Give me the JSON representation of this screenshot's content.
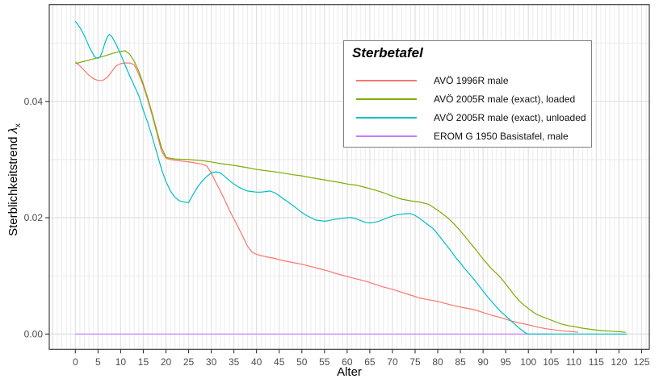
{
  "chart_data": {
    "type": "line",
    "title": "",
    "xlabel": "Alter",
    "ylabel": {
      "prefix": "Sterblichkeitstrend",
      "symbol": "λ",
      "subscript": "x"
    },
    "xlim": [
      -5.76,
      126.7
    ],
    "ylim": [
      -0.00263,
      0.05664
    ],
    "x_ticks": [
      0,
      5,
      10,
      15,
      20,
      25,
      30,
      35,
      40,
      45,
      50,
      55,
      60,
      65,
      70,
      75,
      80,
      85,
      90,
      95,
      100,
      105,
      110,
      115,
      120,
      125
    ],
    "y_ticks": [
      {
        "value": 0.0,
        "label": "0.00"
      },
      {
        "value": 0.02,
        "label": "0.02"
      },
      {
        "value": 0.04,
        "label": "0.04"
      }
    ],
    "x_minor_step": 1,
    "y_minor": [
      0.01,
      0.03,
      0.05
    ],
    "grid": true,
    "legend": {
      "title": "Sterbetafel",
      "position": "inside-top-right",
      "entries": [
        {
          "id": "avo-1996r-male",
          "label": "AVÖ 1996R male",
          "color": "#F8766D"
        },
        {
          "id": "avo-2005r-loaded",
          "label": "AVÖ 2005R male (exact), loaded",
          "color": "#7CAE00"
        },
        {
          "id": "avo-2005r-unloaded",
          "label": "AVÖ 2005R male (exact), unloaded",
          "color": "#00BFC4"
        },
        {
          "id": "erom-g-1950",
          "label": "EROM G 1950 Basistafel, male",
          "color": "#C77CFF"
        }
      ]
    },
    "draw_order": [
      "erom-g-1950",
      "avo-1996r-male",
      "avo-2005r-loaded",
      "avo-2005r-unloaded"
    ],
    "series": [
      {
        "id": "avo-1996r-male",
        "name": "AVÖ 1996R male",
        "color": "#F8766D",
        "points": [
          [
            0,
            0.0468
          ],
          [
            1,
            0.0461
          ],
          [
            2,
            0.0453
          ],
          [
            3,
            0.0445
          ],
          [
            4,
            0.0439
          ],
          [
            5,
            0.0436
          ],
          [
            6,
            0.0436
          ],
          [
            7,
            0.0441
          ],
          [
            8,
            0.0451
          ],
          [
            9,
            0.0461
          ],
          [
            10,
            0.0465
          ],
          [
            11,
            0.0466
          ],
          [
            12,
            0.0466
          ],
          [
            13,
            0.0463
          ],
          [
            14,
            0.0447
          ],
          [
            15,
            0.0427
          ],
          [
            16,
            0.0402
          ],
          [
            17,
            0.0375
          ],
          [
            18,
            0.0345
          ],
          [
            19,
            0.0315
          ],
          [
            20,
            0.0302
          ],
          [
            21,
            0.03
          ],
          [
            22,
            0.0299
          ],
          [
            24,
            0.0297
          ],
          [
            26,
            0.0295
          ],
          [
            28,
            0.0292
          ],
          [
            29,
            0.0289
          ],
          [
            30,
            0.0277
          ],
          [
            31,
            0.0261
          ],
          [
            32,
            0.0246
          ],
          [
            33,
            0.023
          ],
          [
            34,
            0.0213
          ],
          [
            35,
            0.0198
          ],
          [
            36,
            0.0183
          ],
          [
            37,
            0.0167
          ],
          [
            38,
            0.0151
          ],
          [
            39,
            0.0141
          ],
          [
            40,
            0.0137
          ],
          [
            41,
            0.0135
          ],
          [
            42,
            0.0133
          ],
          [
            44,
            0.013
          ],
          [
            46,
            0.0126
          ],
          [
            48,
            0.0123
          ],
          [
            50,
            0.012
          ],
          [
            52,
            0.0116
          ],
          [
            54,
            0.0112
          ],
          [
            56,
            0.0108
          ],
          [
            58,
            0.0103
          ],
          [
            60,
            0.0099
          ],
          [
            62,
            0.0095
          ],
          [
            64,
            0.0091
          ],
          [
            66,
            0.0086
          ],
          [
            68,
            0.0081
          ],
          [
            70,
            0.0077
          ],
          [
            72,
            0.0072
          ],
          [
            74,
            0.0067
          ],
          [
            76,
            0.0062
          ],
          [
            78,
            0.0059
          ],
          [
            80,
            0.0056
          ],
          [
            82,
            0.0052
          ],
          [
            84,
            0.0048
          ],
          [
            86,
            0.0045
          ],
          [
            88,
            0.0042
          ],
          [
            90,
            0.0037
          ],
          [
            92,
            0.0032
          ],
          [
            94,
            0.0028
          ],
          [
            96,
            0.0023
          ],
          [
            98,
            0.0019
          ],
          [
            100,
            0.0016
          ],
          [
            102,
            0.0012
          ],
          [
            104,
            0.0009
          ],
          [
            106,
            0.0007
          ],
          [
            108,
            0.0005
          ],
          [
            110,
            0.0004
          ],
          [
            111,
            0.0003
          ]
        ]
      },
      {
        "id": "avo-2005r-loaded",
        "name": "AVÖ 2005R male (exact), loaded",
        "color": "#7CAE00",
        "points": [
          [
            0,
            0.0465
          ],
          [
            2,
            0.0469
          ],
          [
            4,
            0.0473
          ],
          [
            6,
            0.0477
          ],
          [
            8,
            0.0482
          ],
          [
            10,
            0.0486
          ],
          [
            11,
            0.0487
          ],
          [
            12,
            0.0481
          ],
          [
            13,
            0.0469
          ],
          [
            14,
            0.0452
          ],
          [
            15,
            0.043
          ],
          [
            16,
            0.0405
          ],
          [
            17,
            0.0378
          ],
          [
            18,
            0.0349
          ],
          [
            19,
            0.0321
          ],
          [
            20,
            0.0304
          ],
          [
            21,
            0.0302
          ],
          [
            22,
            0.0301
          ],
          [
            25,
            0.03
          ],
          [
            28,
            0.0298
          ],
          [
            30,
            0.0296
          ],
          [
            32,
            0.0293
          ],
          [
            35,
            0.029
          ],
          [
            38,
            0.0286
          ],
          [
            40,
            0.0283
          ],
          [
            42,
            0.0281
          ],
          [
            45,
            0.0278
          ],
          [
            48,
            0.0274
          ],
          [
            50,
            0.0272
          ],
          [
            52,
            0.0269
          ],
          [
            55,
            0.0265
          ],
          [
            58,
            0.0261
          ],
          [
            60,
            0.0258
          ],
          [
            62,
            0.0256
          ],
          [
            64,
            0.0252
          ],
          [
            66,
            0.0248
          ],
          [
            68,
            0.0243
          ],
          [
            70,
            0.0237
          ],
          [
            72,
            0.0232
          ],
          [
            74,
            0.0229
          ],
          [
            76,
            0.0227
          ],
          [
            77,
            0.0225
          ],
          [
            78,
            0.0223
          ],
          [
            79,
            0.0218
          ],
          [
            80,
            0.0213
          ],
          [
            81,
            0.0207
          ],
          [
            82,
            0.0201
          ],
          [
            83,
            0.0194
          ],
          [
            84,
            0.0186
          ],
          [
            85,
            0.0177
          ],
          [
            86,
            0.0168
          ],
          [
            87,
            0.0158
          ],
          [
            88,
            0.0149
          ],
          [
            89,
            0.0139
          ],
          [
            90,
            0.0129
          ],
          [
            91,
            0.012
          ],
          [
            92,
            0.0111
          ],
          [
            93,
            0.0104
          ],
          [
            94,
            0.0096
          ],
          [
            95,
            0.0086
          ],
          [
            96,
            0.0076
          ],
          [
            97,
            0.0066
          ],
          [
            98,
            0.0057
          ],
          [
            99,
            0.005
          ],
          [
            100,
            0.0044
          ],
          [
            101,
            0.0038
          ],
          [
            102,
            0.0033
          ],
          [
            103,
            0.003
          ],
          [
            104,
            0.0027
          ],
          [
            105,
            0.0024
          ],
          [
            106,
            0.0021
          ],
          [
            107,
            0.0018
          ],
          [
            108,
            0.0016
          ],
          [
            109,
            0.0014
          ],
          [
            110,
            0.0013
          ],
          [
            112,
            0.001
          ],
          [
            114,
            0.0008
          ],
          [
            116,
            0.0006
          ],
          [
            118,
            0.0005
          ],
          [
            120,
            0.0004
          ],
          [
            121.5,
            0.0003
          ]
        ]
      },
      {
        "id": "avo-2005r-unloaded",
        "name": "AVÖ 2005R male (exact), unloaded",
        "color": "#00BFC4",
        "points": [
          [
            0,
            0.0538
          ],
          [
            1,
            0.0527
          ],
          [
            2,
            0.0513
          ],
          [
            3,
            0.0495
          ],
          [
            4,
            0.048
          ],
          [
            4.5,
            0.0475
          ],
          [
            5,
            0.0474
          ],
          [
            5.5,
            0.0477
          ],
          [
            6,
            0.0487
          ],
          [
            6.5,
            0.05
          ],
          [
            7,
            0.051
          ],
          [
            7.5,
            0.0515
          ],
          [
            8,
            0.0512
          ],
          [
            9,
            0.0498
          ],
          [
            10,
            0.0481
          ],
          [
            11,
            0.0462
          ],
          [
            12,
            0.0444
          ],
          [
            13,
            0.0427
          ],
          [
            14,
            0.041
          ],
          [
            15,
            0.0385
          ],
          [
            16,
            0.0363
          ],
          [
            17,
            0.0338
          ],
          [
            18,
            0.0311
          ],
          [
            19,
            0.0284
          ],
          [
            20,
            0.0262
          ],
          [
            21,
            0.0246
          ],
          [
            22,
            0.0235
          ],
          [
            23,
            0.0229
          ],
          [
            24,
            0.0227
          ],
          [
            25,
            0.0226
          ],
          [
            26,
            0.024
          ],
          [
            27,
            0.0253
          ],
          [
            28,
            0.0263
          ],
          [
            29,
            0.0271
          ],
          [
            30,
            0.0277
          ],
          [
            31,
            0.0279
          ],
          [
            32,
            0.0277
          ],
          [
            33,
            0.0271
          ],
          [
            34,
            0.0264
          ],
          [
            35,
            0.0258
          ],
          [
            36,
            0.0253
          ],
          [
            37,
            0.0249
          ],
          [
            38,
            0.0246
          ],
          [
            39,
            0.0245
          ],
          [
            40,
            0.0244
          ],
          [
            41,
            0.0244
          ],
          [
            42,
            0.0245
          ],
          [
            43,
            0.0246
          ],
          [
            44,
            0.0243
          ],
          [
            45,
            0.0238
          ],
          [
            46,
            0.0232
          ],
          [
            47,
            0.0227
          ],
          [
            48,
            0.0221
          ],
          [
            49,
            0.0215
          ],
          [
            50,
            0.0209
          ],
          [
            51,
            0.0204
          ],
          [
            52,
            0.02
          ],
          [
            53,
            0.0196
          ],
          [
            54,
            0.0195
          ],
          [
            55,
            0.0194
          ],
          [
            56,
            0.0195
          ],
          [
            57,
            0.0197
          ],
          [
            58,
            0.0198
          ],
          [
            59,
            0.0199
          ],
          [
            60,
            0.02
          ],
          [
            61,
            0.02
          ],
          [
            62,
            0.0198
          ],
          [
            63,
            0.0195
          ],
          [
            64,
            0.0192
          ],
          [
            65,
            0.0191
          ],
          [
            66,
            0.0192
          ],
          [
            67,
            0.0194
          ],
          [
            68,
            0.0197
          ],
          [
            69,
            0.02
          ],
          [
            70,
            0.0203
          ],
          [
            71,
            0.0205
          ],
          [
            72,
            0.0206
          ],
          [
            73,
            0.0207
          ],
          [
            74,
            0.0207
          ],
          [
            75,
            0.0204
          ],
          [
            76,
            0.0199
          ],
          [
            77,
            0.0193
          ],
          [
            78,
            0.0187
          ],
          [
            79,
            0.0181
          ],
          [
            80,
            0.0172
          ],
          [
            81,
            0.0162
          ],
          [
            82,
            0.0152
          ],
          [
            83,
            0.0142
          ],
          [
            84,
            0.0131
          ],
          [
            85,
            0.0122
          ],
          [
            86,
            0.0112
          ],
          [
            87,
            0.0103
          ],
          [
            88,
            0.0094
          ],
          [
            89,
            0.0084
          ],
          [
            90,
            0.0074
          ],
          [
            91,
            0.0064
          ],
          [
            92,
            0.0055
          ],
          [
            93,
            0.0046
          ],
          [
            94,
            0.0038
          ],
          [
            95,
            0.0031
          ],
          [
            96,
            0.0024
          ],
          [
            97,
            0.0017
          ],
          [
            98,
            0.001
          ],
          [
            99,
            0.0004
          ],
          [
            99.5,
            0.0001
          ],
          [
            100,
            0.0
          ],
          [
            121.8,
            0.0
          ]
        ]
      },
      {
        "id": "erom-g-1950",
        "name": "EROM G 1950 Basistafel, male",
        "color": "#C77CFF",
        "points": [
          [
            0,
            0.0
          ],
          [
            105,
            0.0
          ]
        ]
      }
    ],
    "style": {
      "panel_border_color": "#3f3f3f",
      "grid_major_color": "#e2e2e2",
      "grid_minor_color": "#ececec",
      "tick_color": "#333333",
      "tick_label_color": "#4d4d4d",
      "axis_title_color": "#000000",
      "line_width": 1.2
    }
  }
}
